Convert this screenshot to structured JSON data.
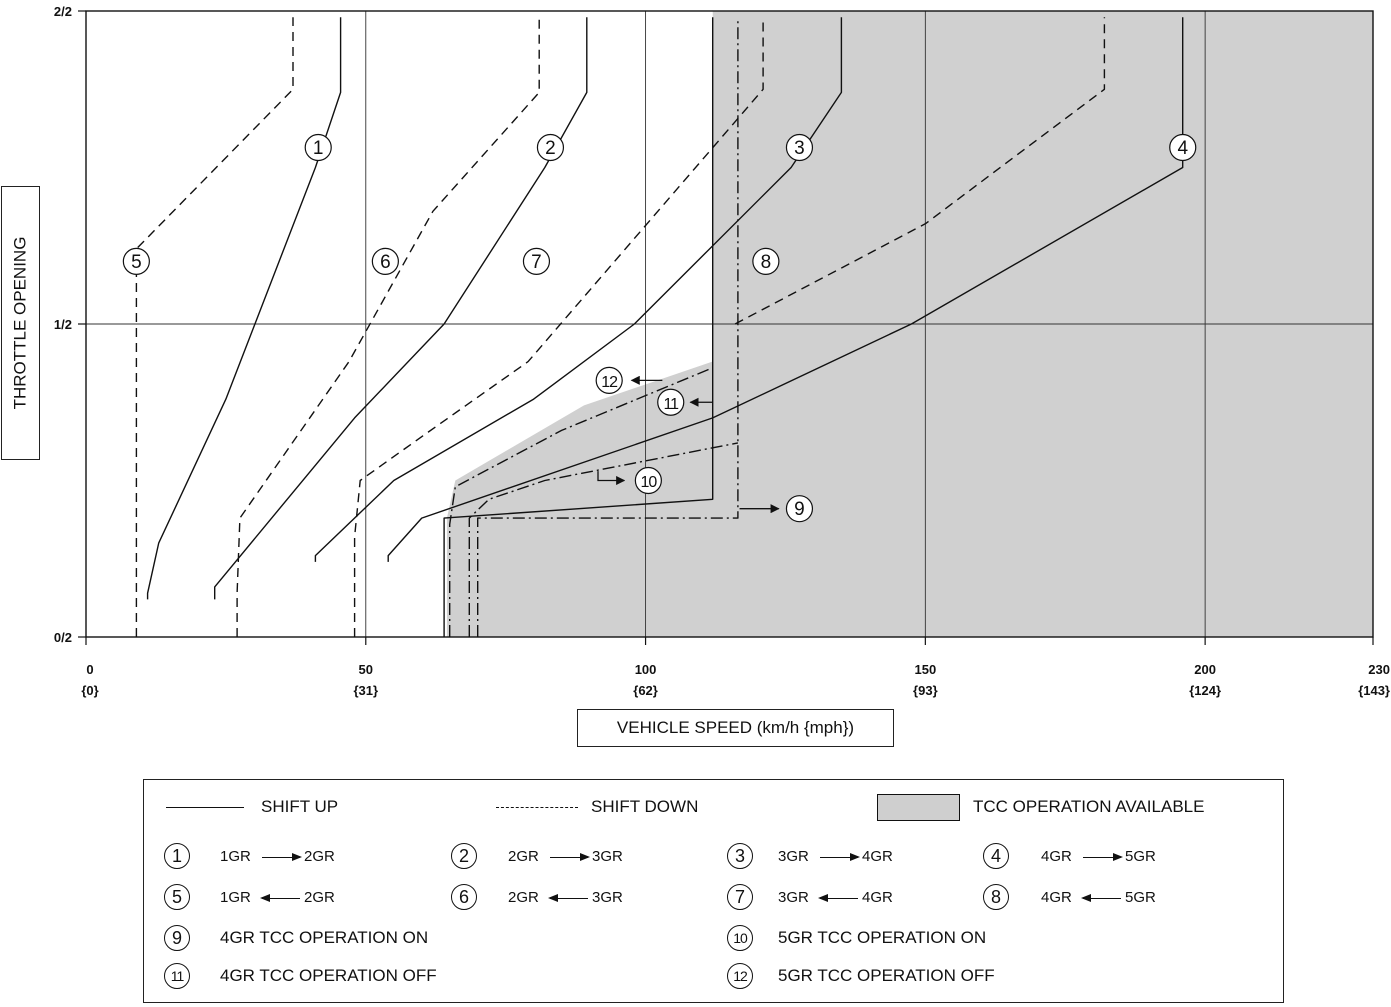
{
  "chart_data": {
    "type": "line",
    "title": "",
    "ylabel": "THROTTLE OPENING",
    "xlabel": "VEHICLE SPEED (km/h {mph})",
    "xlim": [
      0,
      230
    ],
    "ylim": [
      0,
      1
    ],
    "x_ticks": [
      {
        "value": 0,
        "label": "0",
        "sub": "{0}"
      },
      {
        "value": 50,
        "label": "50",
        "sub": "{31}"
      },
      {
        "value": 100,
        "label": "100",
        "sub": "{62}"
      },
      {
        "value": 150,
        "label": "150",
        "sub": "{93}"
      },
      {
        "value": 200,
        "label": "200",
        "sub": "{124}"
      },
      {
        "value": 230,
        "label": "230",
        "sub": "{143}"
      }
    ],
    "y_ticks": [
      {
        "value": 0,
        "label": "0/2"
      },
      {
        "value": 0.5,
        "label": "1/2"
      },
      {
        "value": 1,
        "label": "2/2"
      }
    ],
    "grid": true,
    "tcc_region": {
      "name": "TCC OPERATION AVAILABLE",
      "points": [
        [
          64.5,
          0
        ],
        [
          64.5,
          0.19
        ],
        [
          66,
          0.25
        ],
        [
          89,
          0.37
        ],
        [
          112,
          0.44
        ],
        [
          112,
          1
        ],
        [
          230,
          1
        ],
        [
          230,
          0
        ]
      ]
    },
    "series": [
      {
        "id": "1",
        "style": "solid",
        "points": [
          [
            11,
            0.06
          ],
          [
            11,
            0.07
          ],
          [
            13,
            0.15
          ],
          [
            25,
            0.38
          ],
          [
            41,
            0.75
          ],
          [
            45.5,
            0.87
          ],
          [
            45.5,
            0.99
          ]
        ]
      },
      {
        "id": "2",
        "style": "solid",
        "points": [
          [
            23,
            0.06
          ],
          [
            23,
            0.08
          ],
          [
            48,
            0.35
          ],
          [
            64,
            0.5
          ],
          [
            82,
            0.75
          ],
          [
            89.5,
            0.87
          ],
          [
            89.5,
            0.99
          ]
        ]
      },
      {
        "id": "3",
        "style": "solid",
        "points": [
          [
            41,
            0.12
          ],
          [
            41,
            0.13
          ],
          [
            55,
            0.25
          ],
          [
            80,
            0.38
          ],
          [
            98,
            0.5
          ],
          [
            126,
            0.75
          ],
          [
            135,
            0.87
          ],
          [
            135,
            0.99
          ]
        ]
      },
      {
        "id": "4",
        "style": "solid",
        "points": [
          [
            54,
            0.12
          ],
          [
            54,
            0.13
          ],
          [
            60,
            0.19
          ],
          [
            112,
            0.35
          ],
          [
            147.5,
            0.5
          ],
          [
            196,
            0.75
          ],
          [
            196,
            0.99
          ]
        ]
      },
      {
        "id": "5",
        "style": "dashed",
        "points": [
          [
            9,
            0
          ],
          [
            9,
            0.13
          ],
          [
            9,
            0.62
          ],
          [
            37,
            0.875
          ],
          [
            37,
            0.99
          ]
        ]
      },
      {
        "id": "6",
        "style": "dashed",
        "points": [
          [
            27,
            0
          ],
          [
            27,
            0.07
          ],
          [
            27.5,
            0.19
          ],
          [
            47,
            0.44
          ],
          [
            62,
            0.68
          ],
          [
            81,
            0.87
          ],
          [
            81,
            0.99
          ]
        ]
      },
      {
        "id": "7",
        "style": "dashed",
        "points": [
          [
            48,
            0
          ],
          [
            48,
            0.16
          ],
          [
            49,
            0.25
          ],
          [
            60,
            0.32
          ],
          [
            79,
            0.44
          ],
          [
            121,
            0.875
          ],
          [
            121,
            0.99
          ]
        ]
      },
      {
        "id": "8",
        "style": "dashed",
        "points": [
          [
            116,
            0.5
          ],
          [
            150,
            0.66
          ],
          [
            182,
            0.875
          ],
          [
            182,
            0.99
          ]
        ]
      },
      {
        "id": "9",
        "style": "dashdot",
        "points": [
          [
            70,
            0
          ],
          [
            70,
            0.19
          ],
          [
            116.5,
            0.19
          ],
          [
            116.5,
            0.99
          ]
        ]
      },
      {
        "id": "10",
        "style": "dashdot",
        "points": [
          [
            68.5,
            0
          ],
          [
            68.5,
            0.19
          ],
          [
            72,
            0.22
          ],
          [
            82,
            0.25
          ],
          [
            116.5,
            0.31
          ]
        ]
      },
      {
        "id": "11",
        "style": "solid",
        "points": [
          [
            64,
            0
          ],
          [
            64,
            0.19
          ],
          [
            112,
            0.22
          ],
          [
            112,
            0.41
          ],
          [
            112,
            0.99
          ]
        ]
      },
      {
        "id": "12",
        "style": "dashdot",
        "points": [
          [
            65,
            0
          ],
          [
            65,
            0.18
          ],
          [
            66,
            0.24
          ],
          [
            85,
            0.33
          ],
          [
            112,
            0.43
          ]
        ]
      }
    ]
  },
  "legend": {
    "shift_up": "SHIFT UP",
    "shift_down": "SHIFT DOWN",
    "tcc": "TCC OPERATION AVAILABLE",
    "items": [
      {
        "num": "1",
        "from": "1GR",
        "to": "2GR",
        "dir": "up"
      },
      {
        "num": "2",
        "from": "2GR",
        "to": "3GR",
        "dir": "up"
      },
      {
        "num": "3",
        "from": "3GR",
        "to": "4GR",
        "dir": "up"
      },
      {
        "num": "4",
        "from": "4GR",
        "to": "5GR",
        "dir": "up"
      },
      {
        "num": "5",
        "from": "1GR",
        "to": "2GR",
        "dir": "down"
      },
      {
        "num": "6",
        "from": "2GR",
        "to": "3GR",
        "dir": "down"
      },
      {
        "num": "7",
        "from": "3GR",
        "to": "4GR",
        "dir": "down"
      },
      {
        "num": "8",
        "from": "4GR",
        "to": "5GR",
        "dir": "down"
      }
    ],
    "tcc_items": [
      {
        "num": "9",
        "text": "4GR TCC OPERATION ON"
      },
      {
        "num": "10",
        "text": "5GR TCC OPERATION ON"
      },
      {
        "num": "11",
        "text": "4GR TCC OPERATION OFF"
      },
      {
        "num": "12",
        "text": "5GR TCC OPERATION OFF"
      }
    ]
  }
}
